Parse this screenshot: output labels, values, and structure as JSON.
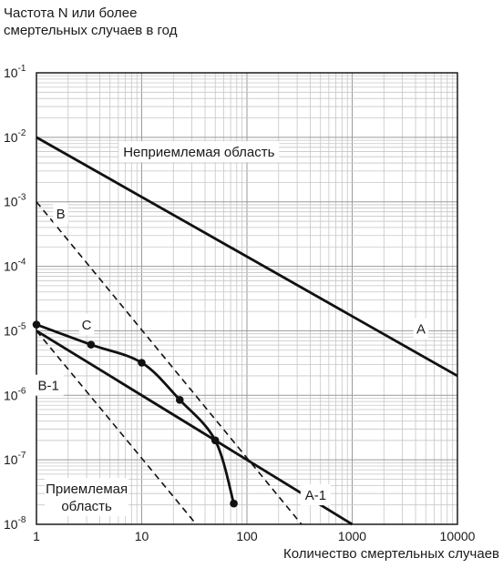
{
  "chart_data": {
    "type": "line",
    "title": "",
    "ylabel_line1": "Частота N или более",
    "ylabel_line2": "смертельных случаев в год",
    "xlabel": "Количество смертельных случаев",
    "x_scale": "log",
    "y_scale": "log",
    "xlim": [
      1,
      10000
    ],
    "ylim": [
      1e-08,
      0.1
    ],
    "grid": true,
    "x_ticks": [
      {
        "value": 1,
        "label": "1"
      },
      {
        "value": 10,
        "label": "10"
      },
      {
        "value": 100,
        "label": "100"
      },
      {
        "value": 1000,
        "label": "1000"
      },
      {
        "value": 10000,
        "label": "10000"
      }
    ],
    "y_ticks": [
      {
        "value": 0.1,
        "base": "10",
        "exp": "-1"
      },
      {
        "value": 0.01,
        "base": "10",
        "exp": "-2"
      },
      {
        "value": 0.001,
        "base": "10",
        "exp": "-3"
      },
      {
        "value": 0.0001,
        "base": "10",
        "exp": "-4"
      },
      {
        "value": 1e-05,
        "base": "10",
        "exp": "-5"
      },
      {
        "value": 1e-06,
        "base": "10",
        "exp": "-6"
      },
      {
        "value": 1e-07,
        "base": "10",
        "exp": "-7"
      },
      {
        "value": 1e-08,
        "base": "10",
        "exp": "-8"
      }
    ],
    "series": [
      {
        "name": "A",
        "style": "solid",
        "x": [
          1,
          10000
        ],
        "y": [
          0.01,
          2e-06
        ]
      },
      {
        "name": "B",
        "style": "dashed",
        "x": [
          1,
          330
        ],
        "y": [
          0.001,
          1e-08
        ]
      },
      {
        "name": "A-1",
        "style": "solid",
        "x": [
          1,
          1000
        ],
        "y": [
          1e-05,
          1e-08
        ]
      },
      {
        "name": "B-1",
        "style": "dashed",
        "x": [
          1,
          33
        ],
        "y": [
          1e-05,
          1e-08
        ]
      },
      {
        "name": "C",
        "style": "solid-markers",
        "x": [
          1,
          3.3,
          10,
          23,
          50,
          75
        ],
        "y": [
          1.25e-05,
          6.1e-06,
          3.2e-06,
          8.5e-07,
          2e-07,
          2.1e-08
        ]
      }
    ],
    "annotations": [
      {
        "text": "Неприемлемая область",
        "x": 35,
        "y": 0.005
      },
      {
        "text": "A",
        "x": 4500,
        "y": 9e-06
      },
      {
        "text": "B",
        "x": 1.7,
        "y": 0.00055
      },
      {
        "text": "C",
        "x": 3.0,
        "y": 1.05e-05
      },
      {
        "text": "B-1",
        "x": 1.3,
        "y": 1.2e-06
      },
      {
        "text": "A-1",
        "x": 450,
        "y": 2.4e-08
      },
      {
        "text_lines": [
          "Приемлемая",
          "область"
        ],
        "x": 3.0,
        "y": 3e-08
      }
    ]
  }
}
